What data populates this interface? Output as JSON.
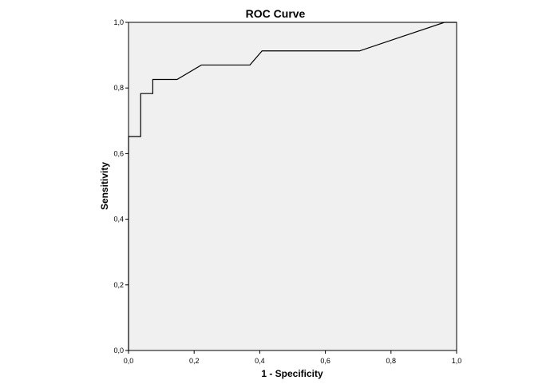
{
  "chart_data": {
    "type": "line",
    "title": "ROC Curve",
    "xlabel": "1 - Specificity",
    "ylabel": "Sensitivity",
    "xlim": [
      0,
      1
    ],
    "ylim": [
      0,
      1
    ],
    "x_ticks": [
      "0,0",
      "0,2",
      "0,4",
      "0,6",
      "0,8",
      "1,0"
    ],
    "y_ticks": [
      "0,0",
      "0,2",
      "0,4",
      "0,6",
      "0,8",
      "1,0"
    ],
    "x_tick_values": [
      0,
      0.2,
      0.4,
      0.6,
      0.8,
      1.0
    ],
    "y_tick_values": [
      0,
      0.2,
      0.4,
      0.6,
      0.8,
      1.0
    ],
    "grid": false,
    "legend": "none",
    "colors": {
      "plot_background": "#f0f0f0",
      "line": "#000000",
      "axis": "#000000"
    },
    "series": [
      {
        "x": [
          0.0,
          0.0,
          0.037,
          0.037,
          0.074,
          0.074,
          0.148,
          0.222,
          0.37,
          0.407,
          0.704,
          0.963,
          1.0
        ],
        "y": [
          0.0,
          0.652,
          0.652,
          0.783,
          0.783,
          0.826,
          0.826,
          0.87,
          0.87,
          0.913,
          0.913,
          1.0,
          1.0
        ]
      }
    ]
  }
}
